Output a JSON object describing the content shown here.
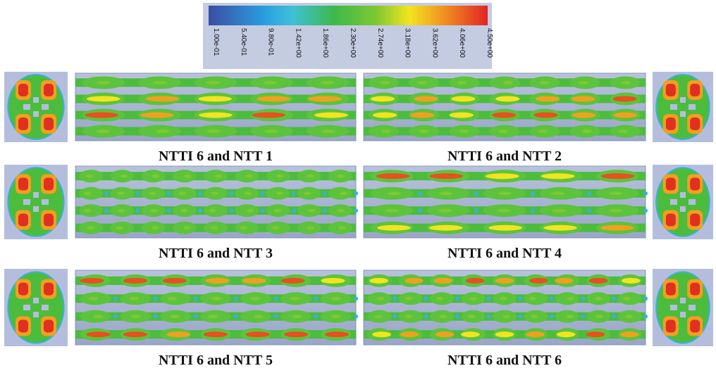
{
  "colorbar": {
    "ticks": [
      "1.00e-01",
      "5.40e-01",
      "9.80e-01",
      "1.42e+00",
      "1.86e+00",
      "2.30e+00",
      "2.74e+00",
      "3.18e+00",
      "3.62e+00",
      "4.06e+00",
      "4.50e+00"
    ]
  },
  "panels": [
    {
      "caption": "NTTI 6 and NTT 1"
    },
    {
      "caption": "NTTI 6 and NTT 2"
    },
    {
      "caption": "NTTI 6 and NTT 3"
    },
    {
      "caption": "NTTI 6 and NTT 4"
    },
    {
      "caption": "NTTI 6 and NTT 5"
    },
    {
      "caption": "NTTI 6 and NTT 6"
    }
  ]
}
